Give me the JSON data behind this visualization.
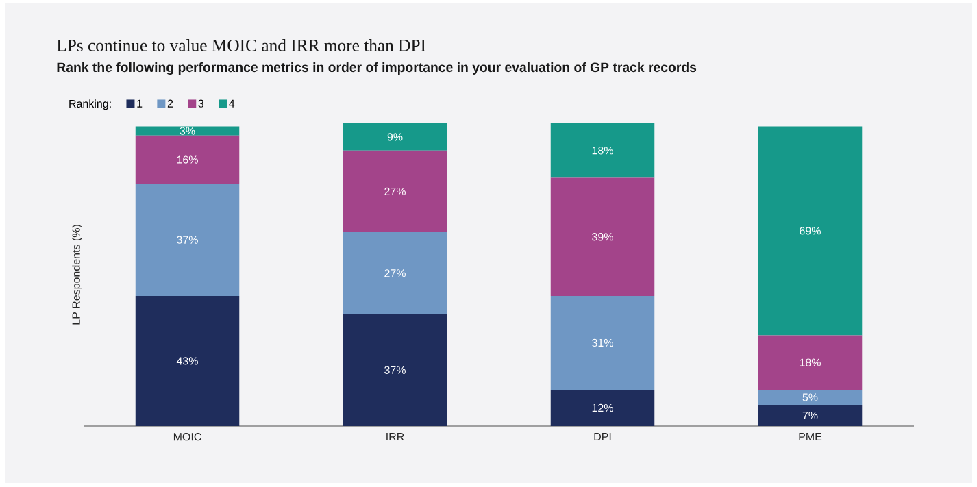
{
  "chart_data": {
    "type": "bar",
    "title": "LPs continue to value MOIC and IRR more than DPI",
    "subtitle": "Rank the following performance metrics in order of importance in your evaluation of GP track records",
    "ylabel": "LP Respondents (%)",
    "legend_title": "Ranking:",
    "legend": "top left",
    "stacked": true,
    "categories": [
      "MOIC",
      "IRR",
      "DPI",
      "PME"
    ],
    "tick_labels": "x",
    "series": [
      {
        "name": "1",
        "color": "#1f2d5c",
        "values": [
          43,
          37,
          12,
          7
        ],
        "value_labels": [
          "43%",
          "37%",
          "12%",
          "7%"
        ]
      },
      {
        "name": "2",
        "color": "#6f97c4",
        "values": [
          37,
          27,
          31,
          5
        ],
        "value_labels": [
          "37%",
          "27%",
          "31%",
          "5%"
        ]
      },
      {
        "name": "3",
        "color": "#a3448a",
        "values": [
          16,
          27,
          39,
          18
        ],
        "value_labels": [
          "16%",
          "27%",
          "39%",
          "18%"
        ]
      },
      {
        "name": "4",
        "color": "#16998a",
        "values": [
          3,
          9,
          18,
          69
        ],
        "value_labels": [
          "3%",
          "9%",
          "18%",
          "69%"
        ]
      }
    ]
  }
}
